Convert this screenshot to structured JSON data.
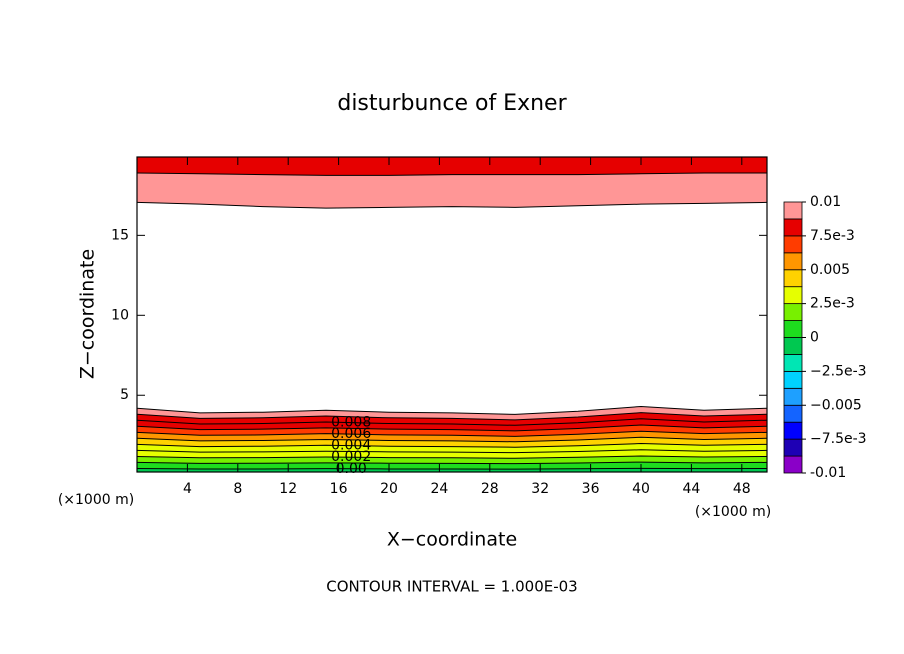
{
  "chart_data": {
    "type": "contour",
    "title": "disturbunce of Exner",
    "xlabel": "X−coordinate",
    "ylabel": "Z−coordinate",
    "xunit": "(×1000 m)",
    "yunit": "(×1000 m)",
    "footer": "CONTOUR INTERVAL = 1.000E-03",
    "xlim": [
      0,
      50
    ],
    "ylim": [
      0.2,
      19.9
    ],
    "xticks": [
      4,
      8,
      12,
      16,
      20,
      24,
      28,
      32,
      36,
      40,
      44,
      48
    ],
    "yticks": [
      5,
      10,
      15
    ],
    "x": [
      0,
      5,
      10,
      15,
      20,
      25,
      30,
      35,
      40,
      45,
      50
    ],
    "contour_groups": [
      {
        "edge": "bottom",
        "contours": [
          {
            "level": 0,
            "label": "0.00",
            "values": [
              0.42,
              0.39,
              0.39,
              0.41,
              0.39,
              0.39,
              0.38,
              0.4,
              0.43,
              0.41,
              0.42
            ]
          },
          {
            "level": 0.001,
            "values": [
              0.8,
              0.74,
              0.75,
              0.77,
              0.75,
              0.74,
              0.72,
              0.76,
              0.82,
              0.77,
              0.8
            ]
          },
          {
            "level": 0.002,
            "label": "0.002",
            "values": [
              1.17,
              1.09,
              1.1,
              1.14,
              1.1,
              1.09,
              1.06,
              1.12,
              1.2,
              1.14,
              1.17
            ]
          },
          {
            "level": 0.003,
            "values": [
              1.55,
              1.44,
              1.46,
              1.5,
              1.46,
              1.44,
              1.41,
              1.48,
              1.59,
              1.5,
              1.55
            ]
          },
          {
            "level": 0.004,
            "label": "0.004",
            "values": [
              1.93,
              1.79,
              1.81,
              1.87,
              1.81,
              1.79,
              1.75,
              1.84,
              1.98,
              1.87,
              1.93
            ]
          },
          {
            "level": 0.005,
            "values": [
              2.31,
              2.15,
              2.17,
              2.23,
              2.17,
              2.15,
              2.09,
              2.2,
              2.37,
              2.23,
              2.31
            ]
          },
          {
            "level": 0.006,
            "label": "0.006",
            "values": [
              2.68,
              2.5,
              2.52,
              2.6,
              2.52,
              2.5,
              2.43,
              2.56,
              2.75,
              2.6,
              2.68
            ]
          },
          {
            "level": 0.007,
            "values": [
              3.06,
              2.85,
              2.88,
              2.96,
              2.88,
              2.85,
              2.77,
              2.92,
              3.14,
              2.96,
              3.06
            ]
          },
          {
            "level": 0.008,
            "label": "0.008",
            "values": [
              3.44,
              3.2,
              3.23,
              3.33,
              3.23,
              3.2,
              3.12,
              3.28,
              3.53,
              3.33,
              3.44
            ]
          },
          {
            "level": 0.009,
            "values": [
              3.81,
              3.55,
              3.59,
              3.7,
              3.59,
              3.55,
              3.46,
              3.64,
              3.91,
              3.7,
              3.81
            ]
          },
          {
            "level": 0.01,
            "values": [
              4.19,
              3.9,
              3.94,
              4.06,
              3.94,
              3.9,
              3.8,
              4.0,
              4.3,
              4.06,
              4.19
            ]
          }
        ]
      },
      {
        "edge": "top",
        "contours": [
          {
            "level": 0.009,
            "values": [
              18.9,
              18.85,
              18.8,
              18.75,
              18.75,
              18.8,
              18.8,
              18.8,
              18.85,
              18.9,
              18.9
            ]
          },
          {
            "level": 0.01,
            "values": [
              17.06,
              16.95,
              16.8,
              16.7,
              16.75,
              16.8,
              16.75,
              16.85,
              16.95,
              17.0,
              17.06
            ]
          }
        ]
      }
    ],
    "colorbar": {
      "lim": [
        -0.01,
        0.01
      ],
      "colors": [
        "#8a00c8",
        "#1e00b4",
        "#0000ff",
        "#1464ff",
        "#1ea0ff",
        "#00d2ff",
        "#00e6b4",
        "#00c850",
        "#1edc1e",
        "#78f000",
        "#e6ff00",
        "#ffd200",
        "#ff9600",
        "#ff3c00",
        "#e60000",
        "#ff9696"
      ],
      "ticks": [
        -0.01,
        {
          "value": -0.0075,
          "label": "−7.5e-3"
        },
        {
          "value": -0.005,
          "label": "−0.005"
        },
        {
          "value": -0.0025,
          "label": "−2.5e-3"
        },
        0,
        {
          "value": 0.0025,
          "label": "2.5e-3"
        },
        0.005,
        {
          "value": 0.0075,
          "label": "7.5e-3"
        },
        0.01
      ]
    }
  }
}
